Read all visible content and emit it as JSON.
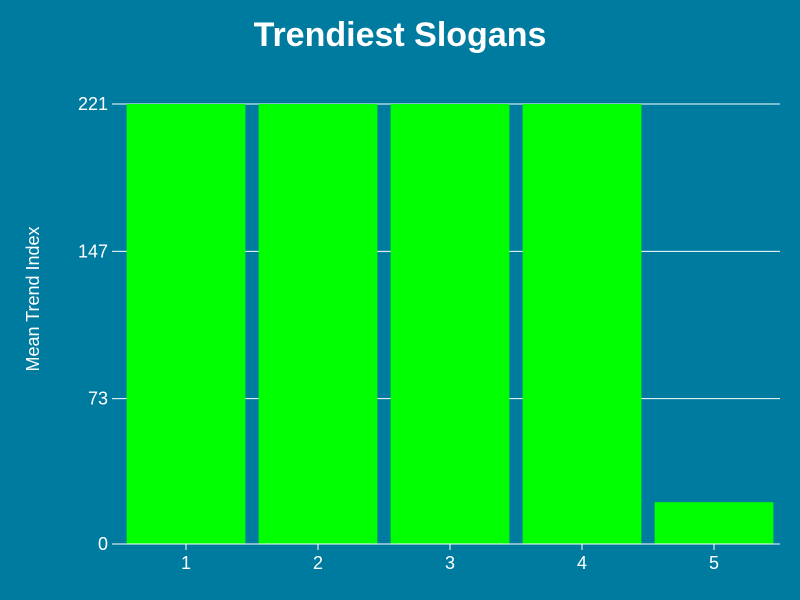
{
  "chart_data": {
    "type": "bar",
    "title": "Trendiest Slogans",
    "xlabel": "",
    "ylabel": "Mean Trend Index",
    "categories": [
      "1",
      "2",
      "3",
      "4",
      "5"
    ],
    "values": [
      221,
      221,
      221,
      221,
      21
    ],
    "ylim": [
      0,
      221
    ],
    "yticks": [
      0,
      73,
      147,
      221
    ],
    "grid": true,
    "legend": "none"
  },
  "colors": {
    "background": "#007ba0",
    "bar": "#00ff00",
    "gridline": "#ffffff",
    "text": "#ffffff"
  }
}
